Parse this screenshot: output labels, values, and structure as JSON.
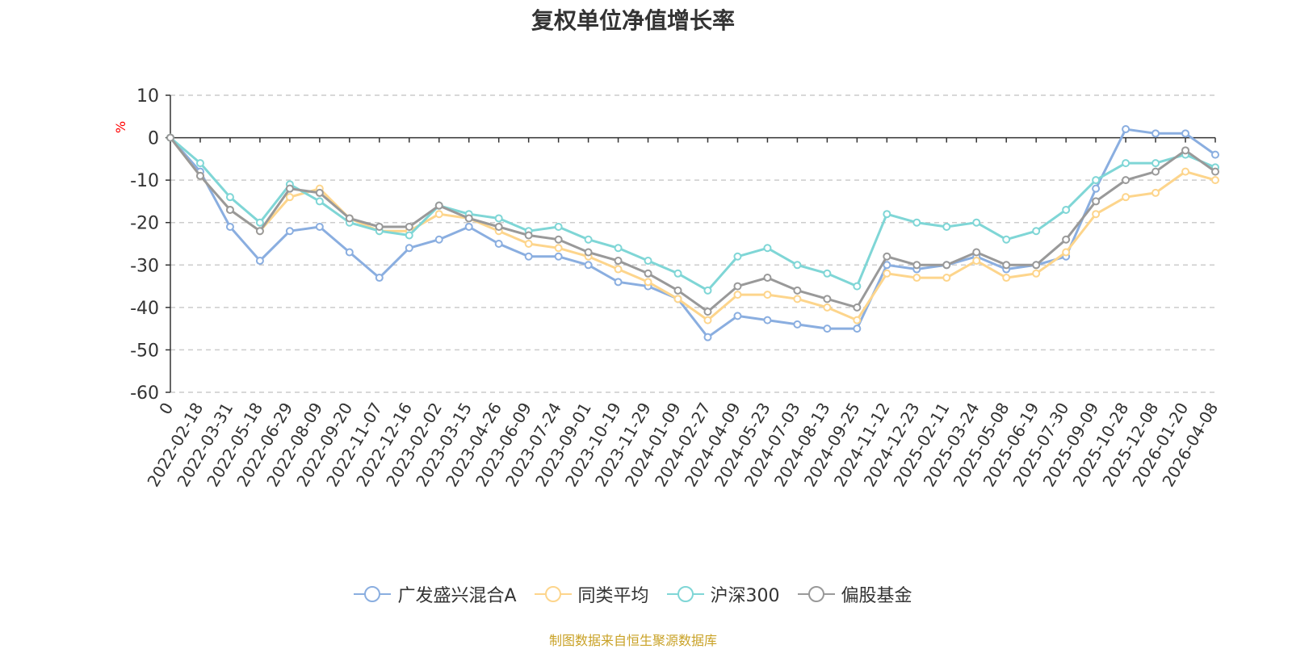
{
  "chart_data": {
    "type": "line",
    "title": "复权单位净值增长率",
    "ylabel": "%",
    "ylim": [
      -60,
      10
    ],
    "yticks": [
      10,
      0,
      -10,
      -20,
      -30,
      -40,
      -50,
      -60
    ],
    "grid": true,
    "legend_position": "bottom",
    "categories": [
      "0",
      "2022-02-18",
      "2022-03-31",
      "2022-05-18",
      "2022-06-29",
      "2022-08-09",
      "2022-09-20",
      "2022-11-07",
      "2022-12-16",
      "2023-02-02",
      "2023-03-15",
      "2023-04-26",
      "2023-06-09",
      "2023-07-24",
      "2023-09-01",
      "2023-10-19",
      "2023-11-29",
      "2024-01-09",
      "2024-02-27",
      "2024-04-09",
      "2024-05-23",
      "2024-07-03",
      "2024-08-13",
      "2024-09-25",
      "2024-11-12",
      "2024-12-23",
      "2025-02-11",
      "2025-03-24",
      "2025-05-08",
      "2025-06-19",
      "2025-07-30",
      "2025-09-09",
      "2025-10-28",
      "2025-12-08",
      "2026-01-20",
      "2026-04-08"
    ],
    "series": [
      {
        "name": "广发盛兴混合A",
        "color": "#8aaee0",
        "values": [
          0,
          -8,
          -21,
          -29,
          -22,
          -21,
          -27,
          -33,
          -26,
          -24,
          -21,
          -25,
          -28,
          -28,
          -30,
          -34,
          -35,
          -38,
          -47,
          -42,
          -43,
          -44,
          -45,
          -45,
          -30,
          -31,
          -30,
          -28,
          -31,
          -30,
          -28,
          -12,
          2,
          1,
          1,
          -4
        ]
      },
      {
        "name": "同类平均",
        "color": "#fdd58c",
        "values": [
          0,
          -9,
          -17,
          -22,
          -14,
          -12,
          -19,
          -22,
          -22,
          -18,
          -19,
          -22,
          -25,
          -26,
          -28,
          -31,
          -34,
          -38,
          -43,
          -37,
          -37,
          -38,
          -40,
          -43,
          -32,
          -33,
          -33,
          -29,
          -33,
          -32,
          -27,
          -18,
          -14,
          -13,
          -8,
          -10
        ]
      },
      {
        "name": "沪深300",
        "color": "#7fd6d6",
        "values": [
          0,
          -6,
          -14,
          -20,
          -11,
          -15,
          -20,
          -22,
          -23,
          -16,
          -18,
          -19,
          -22,
          -21,
          -24,
          -26,
          -29,
          -32,
          -36,
          -28,
          -26,
          -30,
          -32,
          -35,
          -18,
          -20,
          -21,
          -20,
          -24,
          -22,
          -17,
          -10,
          -6,
          -6,
          -4,
          -7
        ]
      },
      {
        "name": "偏股基金",
        "color": "#999999",
        "values": [
          0,
          -9,
          -17,
          -22,
          -12,
          -13,
          -19,
          -21,
          -21,
          -16,
          -19,
          -21,
          -23,
          -24,
          -27,
          -29,
          -32,
          -36,
          -41,
          -35,
          -33,
          -36,
          -38,
          -40,
          -28,
          -30,
          -30,
          -27,
          -30,
          -30,
          -24,
          -15,
          -10,
          -8,
          -3,
          -8
        ]
      }
    ]
  },
  "source_note": "制图数据来自恒生聚源数据库"
}
